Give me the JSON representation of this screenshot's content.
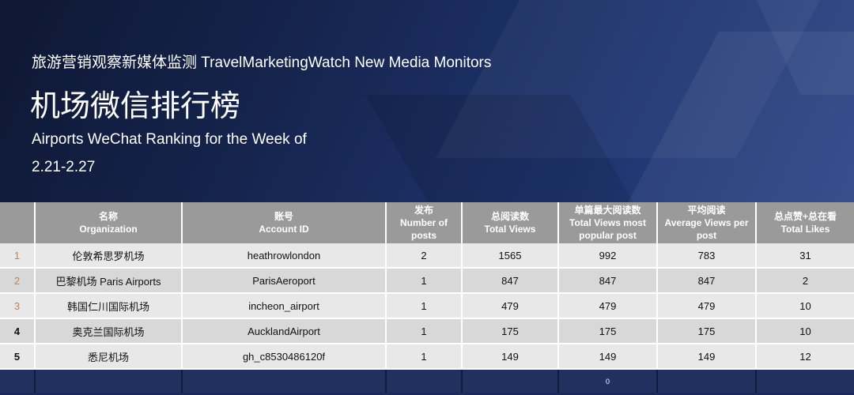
{
  "header": {
    "subtitle": "旅游营销观察新媒体监测 TravelMarketingWatch New Media Monitors",
    "title_cn": "机场微信排行榜",
    "title_en": "Airports WeChat Ranking for the Week of",
    "dates": "2.21-2.27"
  },
  "table": {
    "columns": [
      {
        "cn": "",
        "en": ""
      },
      {
        "cn": "名称",
        "en": "Organization"
      },
      {
        "cn": "账号",
        "en": "Account ID"
      },
      {
        "cn": "发布",
        "en": "Number of posts"
      },
      {
        "cn": "总阅读数",
        "en": "Total Views"
      },
      {
        "cn": "单篇最大阅读数",
        "en": "Total Views most popular post"
      },
      {
        "cn": "平均阅读",
        "en": "Average Views per post"
      },
      {
        "cn": "总点赞+总在看",
        "en": "Total Likes"
      }
    ],
    "rows": [
      {
        "rank": "1",
        "org": "伦敦希思罗机场",
        "account": "heathrowlondon",
        "posts": "2",
        "views": "1565",
        "max": "992",
        "avg": "783",
        "likes": "31"
      },
      {
        "rank": "2",
        "org": "巴黎机场 Paris Airports",
        "account": "ParisAeroport",
        "posts": "1",
        "views": "847",
        "max": "847",
        "avg": "847",
        "likes": "2"
      },
      {
        "rank": "3",
        "org": "韩国仁川国际机场",
        "account": "incheon_airport",
        "posts": "1",
        "views": "479",
        "max": "479",
        "avg": "479",
        "likes": "10"
      },
      {
        "rank": "4",
        "org": "奥克兰国际机场",
        "account": "AucklandAirport",
        "posts": "1",
        "views": "175",
        "max": "175",
        "avg": "175",
        "likes": "10"
      },
      {
        "rank": "5",
        "org": "悉尼机场",
        "account": "gh_c8530486120f",
        "posts": "1",
        "views": "149",
        "max": "149",
        "avg": "149",
        "likes": "12"
      }
    ],
    "footer_note": "0"
  },
  "colors": {
    "rank_top3": "#e07b2a",
    "rank_other": "#111111",
    "header_bg": "#9a9a9a",
    "banner_dark": "#0e1733",
    "footer_bg": "#20305f"
  }
}
